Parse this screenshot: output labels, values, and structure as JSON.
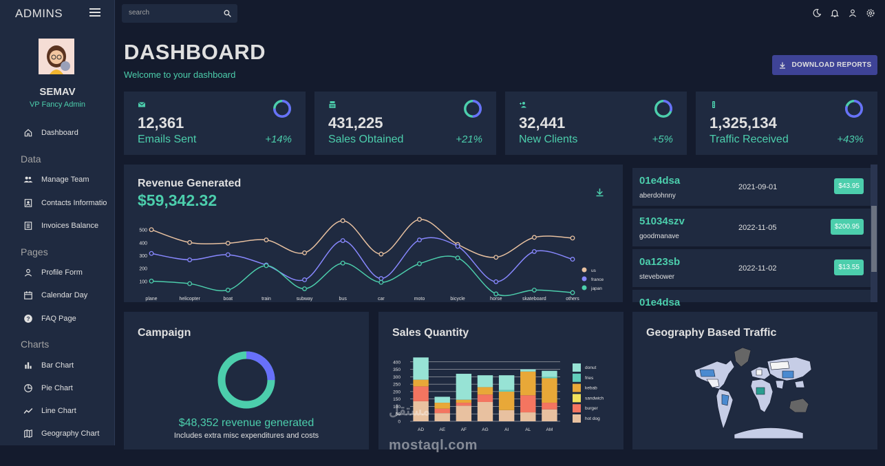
{
  "sidebar": {
    "brand": "ADMINS",
    "user_name": "SEMAV",
    "user_role": "VP Fancy Admin",
    "sections": {
      "data": "Data",
      "pages": "Pages",
      "charts": "Charts"
    },
    "items": {
      "dashboard": "Dashboard",
      "manage_team": "Manage Team",
      "contacts": "Contacts Informatio",
      "invoices": "Invoices Balance",
      "profile": "Profile Form",
      "calendar": "Calendar Day",
      "faq": "FAQ Page",
      "bar": "Bar Chart",
      "pie": "Pie Chart",
      "line": "Line Chart",
      "geo": "Geography Chart"
    }
  },
  "topbar": {
    "search_placeholder": "search"
  },
  "header": {
    "title": "DASHBOARD",
    "subtitle": "Welcome to your dashboard",
    "download_label": "DOWNLOAD REPORTS"
  },
  "stats": [
    {
      "value": "12,361",
      "label": "Emails Sent",
      "change": "+14%",
      "progress": 0.75,
      "icon": "email-icon"
    },
    {
      "value": "431,225",
      "label": "Sales Obtained",
      "change": "+21%",
      "progress": 0.5,
      "icon": "point-of-sale-icon"
    },
    {
      "value": "32,441",
      "label": "New Clients",
      "change": "+5%",
      "progress": 0.3,
      "icon": "person-add-icon"
    },
    {
      "value": "1,325,134",
      "label": "Traffic Received",
      "change": "+43%",
      "progress": 0.8,
      "icon": "traffic-icon"
    }
  ],
  "revenue": {
    "title": "Revenue Generated",
    "value": "$59,342.32"
  },
  "transactions": [
    {
      "id": "01e4dsa",
      "user": "aberdohnny",
      "date": "2021-09-01",
      "cost": "$43.95"
    },
    {
      "id": "51034szv",
      "user": "goodmanave",
      "date": "2022-11-05",
      "cost": "$200.95"
    },
    {
      "id": "0a123sb",
      "user": "stevebower",
      "date": "2022-11-02",
      "cost": "$13.55"
    },
    {
      "id": "01e4dsa",
      "user": "",
      "date": "",
      "cost": ""
    }
  ],
  "campaign": {
    "title": "Campaign",
    "revenue_text": "$48,352 revenue generated",
    "note": "Includes extra misc expenditures and costs",
    "progress": 0.75
  },
  "sales_quantity": {
    "title": "Sales Quantity"
  },
  "geography": {
    "title": "Geography Based Traffic"
  },
  "watermark": {
    "line1": "مستقل",
    "line2": "mostaql.com"
  },
  "colors": {
    "accent": "#4cceac",
    "primary": "#141b2d",
    "card": "#1f2a40",
    "button": "#3e4396",
    "ring": "#6870fa"
  },
  "chart_data": [
    {
      "type": "line",
      "categories": [
        "plane",
        "helicopter",
        "boat",
        "train",
        "subway",
        "bus",
        "car",
        "moto",
        "bicycle",
        "horse",
        "skateboard",
        "others"
      ],
      "series": [
        {
          "name": "us",
          "color": "#e8c1a0",
          "values": [
            500,
            400,
            395,
            420,
            320,
            570,
            310,
            580,
            385,
            285,
            440,
            435
          ]
        },
        {
          "name": "france",
          "color": "#8888ff",
          "values": [
            315,
            265,
            305,
            225,
            110,
            415,
            120,
            420,
            370,
            95,
            330,
            270
          ]
        },
        {
          "name": "japan",
          "color": "#4cceac",
          "values": [
            100,
            80,
            30,
            220,
            40,
            240,
            90,
            235,
            280,
            0,
            30,
            10
          ]
        }
      ],
      "ylim": [
        0,
        600
      ],
      "yticks": [
        100,
        200,
        300,
        400,
        500
      ],
      "legend": "right"
    },
    {
      "type": "bar",
      "stacked": true,
      "categories": [
        "AD",
        "AE",
        "AF",
        "AG",
        "AI",
        "AL",
        "AM"
      ],
      "series": [
        {
          "name": "hot dog",
          "color": "#e8c1a0",
          "values": [
            135,
            55,
            105,
            130,
            75,
            60,
            80
          ]
        },
        {
          "name": "burger",
          "color": "#f47560",
          "values": [
            100,
            30,
            20,
            50,
            0,
            115,
            45
          ]
        },
        {
          "name": "sandwich",
          "color": "#f1e15b",
          "values": [
            0,
            0,
            0,
            0,
            0,
            0,
            0
          ]
        },
        {
          "name": "kebab",
          "color": "#e8a838",
          "values": [
            45,
            40,
            20,
            50,
            125,
            160,
            165
          ]
        },
        {
          "name": "fries",
          "color": "#61cdbb",
          "values": [
            0,
            0,
            0,
            0,
            10,
            0,
            10
          ]
        },
        {
          "name": "donut",
          "color": "#97e3d5",
          "values": [
            150,
            40,
            175,
            80,
            100,
            15,
            40
          ]
        }
      ],
      "ylim": [
        0,
        450
      ],
      "yticks": [
        0,
        50,
        100,
        150,
        200,
        250,
        300,
        350,
        400
      ],
      "legend": "right"
    }
  ]
}
